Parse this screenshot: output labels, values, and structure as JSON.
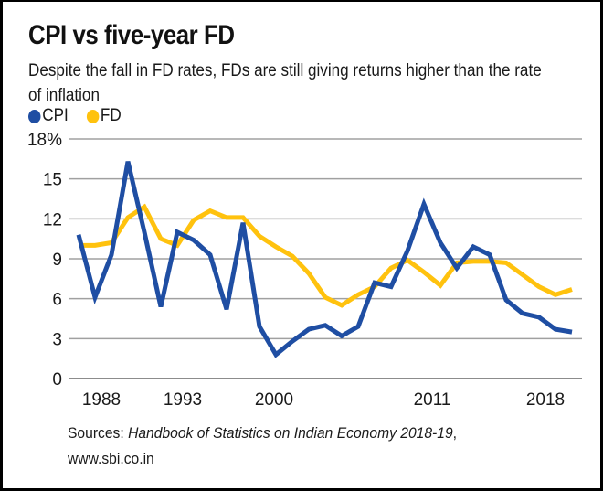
{
  "chart_data": {
    "type": "line",
    "title": "CPI vs five-year FD",
    "subtitle": "Despite the fall in FD rates, FDs are still giving returns higher than the rate of inflation",
    "xlabel": "",
    "ylabel": "",
    "x": [
      1988,
      1989,
      1990,
      1991,
      1992,
      1993,
      1994,
      1995,
      1996,
      1997,
      1998,
      1999,
      2000,
      2001,
      2002,
      2003,
      2004,
      2005,
      2006,
      2007,
      2008,
      2009,
      2010,
      2011,
      2012,
      2013,
      2014,
      2015,
      2016,
      2017,
      2018
    ],
    "series": [
      {
        "name": "CPI",
        "color": "#1f4ea3",
        "values": [
          10.8,
          6.1,
          9.3,
          16.3,
          11.0,
          5.4,
          11.0,
          10.4,
          9.3,
          5.2,
          11.7,
          3.9,
          1.8,
          2.8,
          3.7,
          4.0,
          3.2,
          3.9,
          7.2,
          6.9,
          9.6,
          13.1,
          10.2,
          8.3,
          9.9,
          9.3,
          5.9,
          4.9,
          4.6,
          3.7,
          3.5
        ]
      },
      {
        "name": "FD",
        "color": "#ffc20e",
        "values": [
          10.0,
          10.0,
          10.2,
          12.1,
          12.9,
          10.5,
          10.0,
          11.9,
          12.6,
          12.1,
          12.1,
          10.7,
          9.9,
          9.2,
          7.9,
          6.1,
          5.5,
          6.3,
          6.9,
          8.3,
          8.9,
          8.0,
          7.0,
          8.7,
          8.8,
          8.8,
          8.7,
          7.8,
          6.9,
          6.3,
          6.7
        ]
      }
    ],
    "ylim": [
      0,
      18
    ],
    "y_ticks": [
      {
        "value": 0,
        "label": "0"
      },
      {
        "value": 3,
        "label": "3"
      },
      {
        "value": 6,
        "label": "6"
      },
      {
        "value": 9,
        "label": "9"
      },
      {
        "value": 12,
        "label": "12"
      },
      {
        "value": 15,
        "label": "15"
      },
      {
        "value": 18,
        "label": "18%"
      }
    ],
    "x_ticks": [
      {
        "value": 1988,
        "label": "1988"
      },
      {
        "value": 1993,
        "label": "1993"
      },
      {
        "value": 2000,
        "label": "2000"
      },
      {
        "value": 2011,
        "label": "2011"
      },
      {
        "value": 2018,
        "label": "2018"
      }
    ],
    "grid": true,
    "legend": "top-left"
  },
  "legend": [
    {
      "label": "CPI",
      "color": "#1f4ea3"
    },
    {
      "label": "FD",
      "color": "#ffc20e"
    }
  ],
  "source": {
    "prefix": "Sources: ",
    "italic": "Handbook of Statistics on Indian Economy 2018-19",
    "suffix": ",",
    "line2": "www.sbi.co.in"
  }
}
